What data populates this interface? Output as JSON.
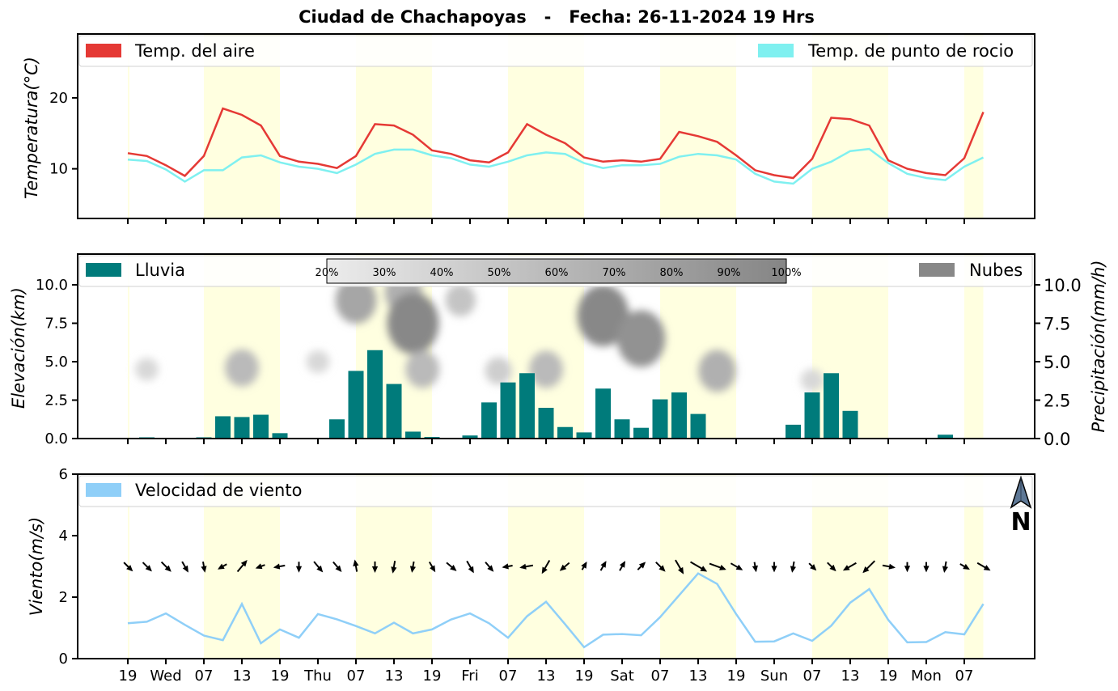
{
  "title": "Ciudad de Chachapoyas   -   Fecha: 26-11-2024 19 Hrs",
  "x_tick_labels": [
    "19",
    "Wed",
    "07",
    "13",
    "19",
    "Thu",
    "07",
    "13",
    "19",
    "Fri",
    "07",
    "13",
    "19",
    "Sat",
    "07",
    "13",
    "19",
    "Sun",
    "07",
    "13",
    "19",
    "Mon",
    "07"
  ],
  "daylight_bands": [
    [
      0,
      0.08
    ],
    [
      4,
      8
    ],
    [
      12,
      16
    ],
    [
      20,
      24
    ],
    [
      28,
      32
    ],
    [
      36,
      40
    ],
    [
      44,
      45
    ]
  ],
  "colors": {
    "temp_air": "#e53935",
    "dew_point": "#7ff0f0",
    "rain": "#007b7b",
    "clouds": "#888888",
    "wind": "#8fcff8",
    "daylight": "#ffffe0",
    "arrow": "#000000"
  },
  "north_arrow_label": "N",
  "chart_data": [
    {
      "type": "line",
      "ylabel": "Temperatura(°C)",
      "ylim": [
        3,
        29
      ],
      "yticks": [
        10,
        20
      ],
      "legend": "top",
      "x": [
        0,
        1,
        2,
        3,
        4,
        5,
        6,
        7,
        8,
        9,
        10,
        11,
        12,
        13,
        14,
        15,
        16,
        17,
        18,
        19,
        20,
        21,
        22,
        23,
        24,
        25,
        26,
        27,
        28,
        29,
        30,
        31,
        32,
        33,
        34,
        35,
        36,
        37,
        38,
        39,
        40,
        41,
        42,
        43,
        44,
        45
      ],
      "series": [
        {
          "name": "Temp. del aire",
          "color": "#e53935",
          "values": [
            12.2,
            11.8,
            10.5,
            9.0,
            11.8,
            18.5,
            17.6,
            16.1,
            11.8,
            11.0,
            10.7,
            10.1,
            11.8,
            16.3,
            16.1,
            14.8,
            12.6,
            12.1,
            11.2,
            10.9,
            12.3,
            16.3,
            14.8,
            13.6,
            11.6,
            11.0,
            11.2,
            11.0,
            11.4,
            15.2,
            14.6,
            13.8,
            11.9,
            9.8,
            9.1,
            8.7,
            11.4,
            17.2,
            17.0,
            16.1,
            11.2,
            10.0,
            9.4,
            9.1,
            11.5,
            18.0
          ]
        },
        {
          "name": "Temp. de punto de rocio",
          "color": "#7ff0f0",
          "values": [
            11.3,
            11.1,
            9.9,
            8.2,
            9.8,
            9.8,
            11.6,
            11.9,
            10.9,
            10.3,
            10.0,
            9.4,
            10.6,
            12.1,
            12.7,
            12.7,
            11.9,
            11.5,
            10.6,
            10.3,
            11.0,
            11.9,
            12.3,
            12.1,
            10.8,
            10.1,
            10.5,
            10.5,
            10.7,
            11.7,
            12.1,
            11.9,
            11.3,
            9.3,
            8.2,
            7.9,
            10.0,
            11.0,
            12.5,
            12.8,
            10.8,
            9.3,
            8.7,
            8.4,
            10.3,
            11.6
          ]
        }
      ]
    },
    {
      "type": "bar",
      "ylabel": "Elevación(km)",
      "ylabel_right": "Precipitación(mm/h)",
      "ylim": [
        0,
        12
      ],
      "yticks": [
        0.0,
        2.5,
        5.0,
        7.5,
        10.0
      ],
      "legend": "top",
      "x": [
        0,
        1,
        2,
        3,
        4,
        5,
        6,
        7,
        8,
        9,
        10,
        11,
        12,
        13,
        14,
        15,
        16,
        17,
        18,
        19,
        20,
        21,
        22,
        23,
        24,
        25,
        26,
        27,
        28,
        29,
        30,
        31,
        32,
        33,
        34,
        35,
        36,
        37,
        38,
        39,
        40,
        41,
        42,
        43,
        44,
        45
      ],
      "series": [
        {
          "name": "Lluvia",
          "color": "#007b7b",
          "values": [
            0,
            0.08,
            0,
            0,
            0.08,
            1.45,
            1.4,
            1.55,
            0.35,
            0.05,
            0,
            1.25,
            4.4,
            5.75,
            3.55,
            0.45,
            0.1,
            0.05,
            0.2,
            2.35,
            3.65,
            4.25,
            2.0,
            0.75,
            0.4,
            3.25,
            1.25,
            0.7,
            2.55,
            3.0,
            1.6,
            0.05,
            0,
            0,
            0,
            0.9,
            3.0,
            4.25,
            1.8,
            0.05,
            0,
            0,
            0,
            0.25,
            0,
            0
          ]
        }
      ],
      "cloud_legend": "Nubes",
      "cloud_colorbar": [
        "20%",
        "30%",
        "40%",
        "50%",
        "60%",
        "70%",
        "80%",
        "90%",
        "100%"
      ],
      "cloud_patches": [
        {
          "x": 1,
          "elev": 4.5,
          "cover": 0.2
        },
        {
          "x": 6,
          "elev": 4.6,
          "cover": 0.5
        },
        {
          "x": 10,
          "elev": 5.0,
          "cover": 0.2
        },
        {
          "x": 12,
          "elev": 9.0,
          "cover": 0.7
        },
        {
          "x": 14.5,
          "elev": 9.5,
          "cover": 0.6
        },
        {
          "x": 15,
          "elev": 7.5,
          "cover": 1.0
        },
        {
          "x": 15.5,
          "elev": 4.5,
          "cover": 0.5
        },
        {
          "x": 17.5,
          "elev": 9.0,
          "cover": 0.4
        },
        {
          "x": 19.5,
          "elev": 4.4,
          "cover": 0.3
        },
        {
          "x": 22,
          "elev": 4.5,
          "cover": 0.5
        },
        {
          "x": 25,
          "elev": 8.0,
          "cover": 1.0
        },
        {
          "x": 27,
          "elev": 6.5,
          "cover": 0.9
        },
        {
          "x": 31,
          "elev": 4.4,
          "cover": 0.6
        },
        {
          "x": 36,
          "elev": 3.8,
          "cover": 0.2
        }
      ]
    },
    {
      "type": "line",
      "ylabel": "Viento(m/s)",
      "ylim": [
        0,
        6
      ],
      "yticks": [
        0,
        2,
        4,
        6
      ],
      "legend": "top-left",
      "x": [
        0,
        1,
        2,
        3,
        4,
        5,
        6,
        7,
        8,
        9,
        10,
        11,
        12,
        13,
        14,
        15,
        16,
        17,
        18,
        19,
        20,
        21,
        22,
        23,
        24,
        25,
        26,
        27,
        28,
        29,
        30,
        31,
        32,
        33,
        34,
        35,
        36,
        37,
        38,
        39,
        40,
        41,
        42,
        43,
        44,
        45
      ],
      "series": [
        {
          "name": "Velocidad de viento",
          "color": "#8fcff8",
          "values": [
            1.15,
            1.2,
            1.47,
            1.1,
            0.75,
            0.6,
            1.78,
            0.5,
            0.95,
            0.68,
            1.45,
            1.28,
            1.06,
            0.82,
            1.17,
            0.82,
            0.95,
            1.27,
            1.47,
            1.15,
            0.68,
            1.38,
            1.85,
            1.12,
            0.37,
            0.78,
            0.8,
            0.76,
            1.35,
            2.06,
            2.77,
            2.43,
            1.45,
            0.55,
            0.56,
            0.82,
            0.58,
            1.07,
            1.82,
            2.26,
            1.26,
            0.53,
            0.54,
            0.86,
            0.79,
            1.78
          ]
        }
      ],
      "wind_directions_deg": [
        135,
        135,
        135,
        150,
        170,
        240,
        40,
        250,
        260,
        180,
        140,
        140,
        350,
        180,
        190,
        190,
        150,
        130,
        150,
        140,
        260,
        260,
        210,
        230,
        30,
        30,
        30,
        45,
        135,
        150,
        120,
        110,
        120,
        170,
        180,
        190,
        135,
        135,
        240,
        225,
        100,
        180,
        180,
        190,
        120,
        120
      ]
    }
  ]
}
